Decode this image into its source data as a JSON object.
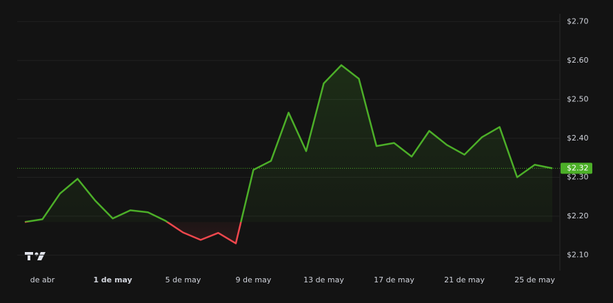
{
  "chart_data": {
    "type": "line",
    "categories": [
      null,
      "de abr",
      null,
      null,
      null,
      "1 de may",
      null,
      null,
      null,
      "5 de may",
      null,
      null,
      null,
      "9 de may",
      null,
      null,
      null,
      "13 de may",
      null,
      null,
      null,
      "17 de may",
      null,
      null,
      null,
      "21 de may",
      null,
      null,
      null,
      "25 de may",
      null
    ],
    "series": [
      {
        "color": "#4caf28",
        "negative_color": "#f0474d",
        "values": [
          2.185,
          2.192,
          2.258,
          2.296,
          2.24,
          2.194,
          2.215,
          2.21,
          2.188,
          2.158,
          2.139,
          2.157,
          2.13,
          2.319,
          2.342,
          2.466,
          2.367,
          2.541,
          2.588,
          2.553,
          2.38,
          2.388,
          2.353,
          2.419,
          2.383,
          2.358,
          2.403,
          2.429,
          2.3,
          2.332,
          2.323
        ],
        "last_value_label": "$2.32"
      }
    ],
    "ylim": [
      2.06,
      2.72
    ],
    "yticks": [
      {
        "value": 2.1,
        "label": "$2.10"
      },
      {
        "value": 2.2,
        "label": "$2.20"
      },
      {
        "value": 2.3,
        "label": "$2.30"
      },
      {
        "value": 2.4,
        "label": "$2.40"
      },
      {
        "value": 2.5,
        "label": "$2.50"
      },
      {
        "value": 2.6,
        "label": "$2.60"
      },
      {
        "value": 2.7,
        "label": "$2.70"
      }
    ],
    "grid": true
  }
}
